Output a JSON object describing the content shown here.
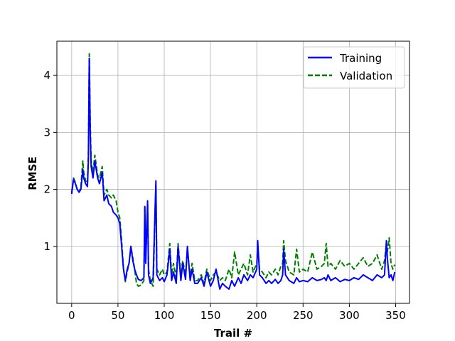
{
  "chart_data": {
    "type": "line",
    "title": "",
    "xlabel": "Trail #",
    "ylabel": "RMSE",
    "xlim": [
      -16,
      365
    ],
    "ylim": [
      0.0,
      4.6
    ],
    "xticks": [
      0,
      50,
      100,
      150,
      200,
      250,
      300,
      350
    ],
    "yticks": [
      1,
      2,
      3,
      4
    ],
    "grid": true,
    "legend_position": "top-right",
    "series": [
      {
        "name": "Training",
        "color": "#0000ff",
        "style": "solid",
        "x": [
          0,
          2,
          4,
          6,
          8,
          10,
          12,
          13,
          15,
          17,
          18,
          19,
          20,
          21,
          23,
          25,
          28,
          30,
          33,
          35,
          38,
          40,
          43,
          45,
          48,
          50,
          52,
          54,
          56,
          58,
          60,
          62,
          64,
          66,
          68,
          70,
          72,
          75,
          78,
          79,
          80,
          82,
          83,
          85,
          88,
          90,
          91,
          92,
          95,
          98,
          100,
          103,
          106,
          108,
          110,
          113,
          115,
          118,
          120,
          123,
          125,
          128,
          130,
          133,
          136,
          140,
          143,
          146,
          150,
          153,
          156,
          160,
          163,
          166,
          170,
          173,
          176,
          180,
          183,
          186,
          190,
          193,
          196,
          200,
          201,
          203,
          206,
          210,
          213,
          216,
          220,
          223,
          226,
          228,
          229,
          231,
          235,
          240,
          243,
          246,
          250,
          255,
          260,
          265,
          270,
          273,
          275,
          277,
          280,
          285,
          290,
          295,
          300,
          305,
          310,
          315,
          320,
          325,
          330,
          335,
          338,
          340,
          341,
          343,
          345,
          347,
          349
        ],
        "y": [
          1.92,
          2.18,
          2.1,
          2.0,
          1.95,
          2.0,
          2.35,
          2.2,
          2.1,
          2.05,
          2.5,
          4.3,
          3.0,
          2.4,
          2.2,
          2.5,
          2.2,
          2.1,
          2.3,
          1.8,
          1.9,
          1.75,
          1.7,
          1.6,
          1.55,
          1.5,
          1.4,
          1.0,
          0.6,
          0.4,
          0.6,
          0.7,
          1.0,
          0.75,
          0.6,
          0.5,
          0.42,
          0.4,
          0.45,
          1.7,
          0.7,
          1.8,
          0.5,
          0.35,
          0.45,
          1.6,
          2.15,
          0.5,
          0.4,
          0.45,
          0.38,
          0.5,
          0.95,
          0.4,
          0.55,
          0.35,
          1.0,
          0.4,
          0.7,
          0.42,
          1.0,
          0.4,
          0.6,
          0.35,
          0.35,
          0.45,
          0.3,
          0.55,
          0.3,
          0.4,
          0.6,
          0.25,
          0.35,
          0.3,
          0.25,
          0.4,
          0.3,
          0.45,
          0.35,
          0.5,
          0.4,
          0.5,
          0.45,
          0.6,
          1.1,
          0.5,
          0.45,
          0.35,
          0.4,
          0.35,
          0.42,
          0.35,
          0.4,
          0.5,
          0.95,
          0.5,
          0.4,
          0.35,
          0.45,
          0.38,
          0.4,
          0.38,
          0.45,
          0.4,
          0.42,
          0.45,
          0.4,
          0.5,
          0.4,
          0.45,
          0.38,
          0.42,
          0.4,
          0.45,
          0.42,
          0.5,
          0.45,
          0.4,
          0.5,
          0.45,
          0.5,
          1.1,
          0.8,
          0.45,
          0.5,
          0.4,
          0.55
        ]
      },
      {
        "name": "Validation",
        "color": "#008000",
        "style": "dashed",
        "x": [
          0,
          2,
          4,
          6,
          8,
          10,
          12,
          13,
          15,
          17,
          18,
          19,
          20,
          21,
          23,
          25,
          28,
          30,
          33,
          35,
          38,
          40,
          43,
          45,
          48,
          50,
          52,
          54,
          56,
          58,
          60,
          62,
          64,
          66,
          68,
          70,
          72,
          75,
          78,
          79,
          80,
          82,
          83,
          85,
          88,
          90,
          91,
          92,
          95,
          98,
          100,
          103,
          106,
          108,
          110,
          113,
          115,
          118,
          120,
          123,
          125,
          128,
          130,
          133,
          136,
          140,
          143,
          146,
          150,
          153,
          156,
          160,
          163,
          166,
          170,
          173,
          176,
          180,
          183,
          186,
          190,
          193,
          196,
          200,
          201,
          203,
          206,
          210,
          213,
          216,
          220,
          223,
          226,
          228,
          229,
          231,
          235,
          240,
          243,
          246,
          250,
          255,
          260,
          265,
          270,
          273,
          275,
          277,
          280,
          285,
          290,
          295,
          300,
          305,
          310,
          315,
          320,
          325,
          330,
          335,
          338,
          340,
          341,
          343,
          345,
          347,
          349
        ],
        "y": [
          1.95,
          2.2,
          2.12,
          2.0,
          1.95,
          2.05,
          2.5,
          2.3,
          2.15,
          2.1,
          2.6,
          4.38,
          3.2,
          2.5,
          2.3,
          2.6,
          2.25,
          2.2,
          2.4,
          1.9,
          2.0,
          1.9,
          1.85,
          1.9,
          1.8,
          1.6,
          1.5,
          1.1,
          0.6,
          0.38,
          0.55,
          0.7,
          1.0,
          0.8,
          0.6,
          0.35,
          0.3,
          0.32,
          0.4,
          1.7,
          0.8,
          1.75,
          0.6,
          0.4,
          0.3,
          1.5,
          2.05,
          0.6,
          0.5,
          0.6,
          0.5,
          0.55,
          1.05,
          0.5,
          0.7,
          0.45,
          1.05,
          0.5,
          0.75,
          0.5,
          0.95,
          0.45,
          0.7,
          0.4,
          0.4,
          0.5,
          0.35,
          0.6,
          0.4,
          0.5,
          0.55,
          0.4,
          0.45,
          0.4,
          0.6,
          0.45,
          0.9,
          0.5,
          0.6,
          0.7,
          0.5,
          0.85,
          0.55,
          0.7,
          1.0,
          0.6,
          0.55,
          0.45,
          0.55,
          0.5,
          0.6,
          0.5,
          0.65,
          0.7,
          1.1,
          0.75,
          0.55,
          0.5,
          0.95,
          0.55,
          0.6,
          0.55,
          0.9,
          0.6,
          0.65,
          0.7,
          1.05,
          0.65,
          0.7,
          0.6,
          0.75,
          0.65,
          0.7,
          0.6,
          0.7,
          0.8,
          0.65,
          0.7,
          0.85,
          0.6,
          0.75,
          1.05,
          0.9,
          1.15,
          0.7,
          0.6,
          0.68
        ]
      }
    ]
  }
}
